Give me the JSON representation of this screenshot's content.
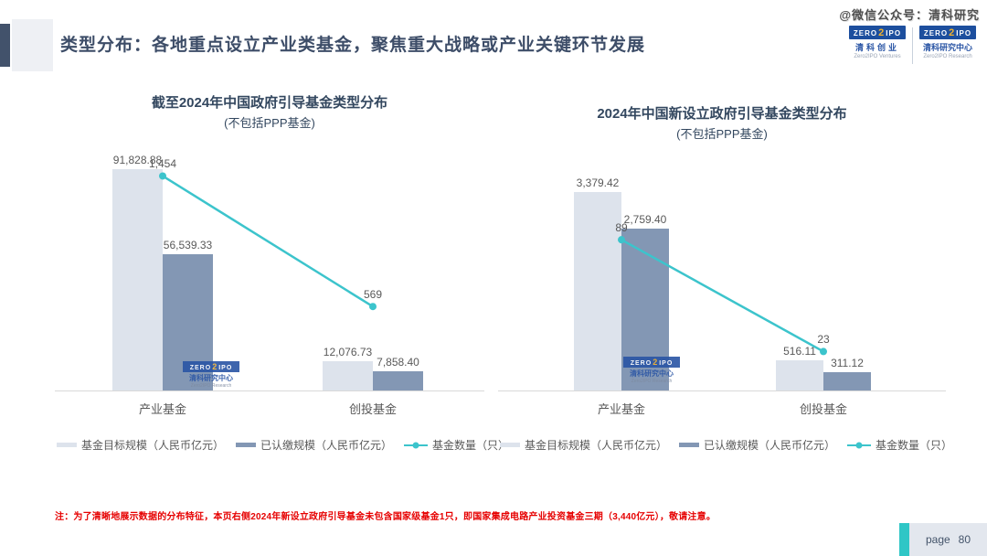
{
  "header": {
    "title": "类型分布：各地重点设立产业类基金，聚焦重大战略或产业关键环节发展",
    "wechat_watermark": "@微信公众号：清科研究",
    "logos": [
      {
        "cn": "清科创业",
        "en": "Zero2IPO Ventures"
      },
      {
        "cn": "清科研究中心",
        "en": "Zero2IPO Research"
      }
    ]
  },
  "brand": {
    "zero": "ZERO",
    "two": "2",
    "ipo": "IPO"
  },
  "watermark_logo": {
    "cn": "清科研究中心",
    "en": "Zero2IPO Research"
  },
  "chart_data": [
    {
      "type": "bar",
      "combo": "bar+line",
      "title": "截至2024年中国政府引导基金类型分布",
      "subtitle": "(不包括PPP基金)",
      "categories": [
        "产业基金",
        "创投基金"
      ],
      "series": [
        {
          "name": "基金目标规模（人民币亿元）",
          "type": "bar",
          "color": "#dde3ec",
          "values": [
            91828.88,
            12076.73
          ],
          "labels": [
            "91,828.88",
            "12,076.73"
          ]
        },
        {
          "name": "已认缴规模（人民币亿元）",
          "type": "bar",
          "color": "#8397b4",
          "values": [
            56539.33,
            7858.4
          ],
          "labels": [
            "56,539.33",
            "7,858.40"
          ]
        },
        {
          "name": "基金数量（只）",
          "type": "line",
          "color": "#3cc4cc",
          "values": [
            1454,
            569
          ],
          "labels": [
            "1,454",
            "569"
          ]
        }
      ],
      "bar_axis_max": 95000,
      "line_axis_max": 1550,
      "gridlines": false,
      "legend_position": "bottom"
    },
    {
      "type": "bar",
      "combo": "bar+line",
      "title": "2024年中国新设立政府引导基金类型分布",
      "subtitle": "(不包括PPP基金)",
      "categories": [
        "产业基金",
        "创投基金"
      ],
      "series": [
        {
          "name": "基金目标规模（人民币亿元）",
          "type": "bar",
          "color": "#dde3ec",
          "values": [
            3379.42,
            516.11
          ],
          "labels": [
            "3,379.42",
            "516.11"
          ]
        },
        {
          "name": "已认缴规模（人民币亿元）",
          "type": "bar",
          "color": "#8397b4",
          "values": [
            2759.4,
            311.12
          ],
          "labels": [
            "2,759.40",
            "311.12"
          ]
        },
        {
          "name": "基金数量（只）",
          "type": "line",
          "color": "#3cc4cc",
          "values": [
            89,
            23
          ],
          "labels": [
            "89",
            "23"
          ]
        }
      ],
      "bar_axis_max": 3900,
      "line_axis_max": 135,
      "gridlines": false,
      "legend_position": "bottom"
    }
  ],
  "note": "注：为了清晰地展示数据的分布特征，本页右侧2024年新设立政府引导基金未包含国家级基金1只，即国家集成电路产业投资基金三期（3,440亿元），敬请注意。",
  "footer": {
    "label": "page",
    "number": "80"
  }
}
